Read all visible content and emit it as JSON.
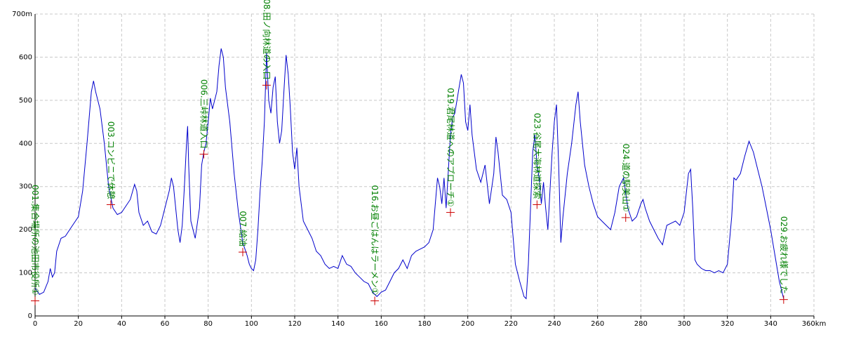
{
  "chart_data": {
    "type": "line",
    "x": [
      0,
      2,
      4,
      6,
      7,
      8,
      9,
      10,
      12,
      14,
      16,
      18,
      20,
      22,
      24,
      26,
      27,
      28,
      30,
      32,
      34,
      36,
      38,
      40,
      42,
      44,
      46,
      47,
      48,
      50,
      52,
      54,
      56,
      58,
      60,
      62,
      63,
      64,
      66,
      67,
      68,
      69,
      70,
      70.5,
      71,
      72,
      74,
      76,
      77,
      78,
      79,
      80,
      81,
      82,
      84,
      85,
      86,
      87,
      88,
      90,
      92,
      94,
      96,
      98,
      99,
      100,
      101,
      102,
      103,
      104,
      105,
      106,
      107,
      108,
      109,
      110,
      111,
      112,
      113,
      114,
      115,
      116,
      117,
      118,
      119,
      120,
      121,
      122,
      124,
      126,
      128,
      130,
      132,
      134,
      136,
      138,
      140,
      142,
      144,
      146,
      148,
      150,
      152,
      154,
      156,
      158,
      160,
      162,
      164,
      166,
      168,
      170,
      172,
      174,
      176,
      178,
      180,
      182,
      184,
      186,
      187,
      188,
      189,
      190,
      192,
      193,
      194,
      196,
      197,
      198,
      199,
      200,
      201,
      202,
      204,
      206,
      208,
      210,
      212,
      213,
      214,
      216,
      218,
      220,
      222,
      224,
      226,
      227,
      228,
      229,
      230,
      231,
      232,
      233,
      234,
      235,
      236,
      237,
      238,
      239,
      240,
      241,
      242,
      243,
      244,
      246,
      248,
      250,
      251,
      252,
      254,
      256,
      258,
      260,
      262,
      264,
      266,
      268,
      270,
      272,
      274,
      276,
      278,
      280,
      281,
      282,
      284,
      286,
      288,
      290,
      292,
      294,
      296,
      298,
      300,
      302,
      303,
      304,
      305,
      306,
      308,
      310,
      312,
      314,
      316,
      318,
      320,
      322,
      323,
      324,
      326,
      328,
      330,
      332,
      334,
      336,
      338,
      340,
      342,
      344,
      346
    ],
    "series": [
      {
        "color": "#0000cc",
        "values": [
          65,
          50,
          55,
          80,
          110,
          90,
          100,
          150,
          180,
          185,
          200,
          215,
          230,
          290,
          400,
          520,
          545,
          520,
          480,
          400,
          300,
          250,
          235,
          240,
          255,
          270,
          305,
          290,
          240,
          210,
          220,
          195,
          190,
          210,
          250,
          290,
          320,
          300,
          200,
          170,
          210,
          300,
          400,
          440,
          350,
          220,
          180,
          250,
          350,
          380,
          400,
          450,
          505,
          480,
          520,
          580,
          620,
          600,
          530,
          450,
          330,
          240,
          170,
          140,
          120,
          110,
          105,
          130,
          200,
          290,
          360,
          450,
          610,
          500,
          470,
          530,
          555,
          450,
          400,
          430,
          520,
          605,
          560,
          480,
          380,
          340,
          390,
          300,
          220,
          200,
          180,
          150,
          140,
          120,
          110,
          115,
          110,
          140,
          120,
          115,
          100,
          90,
          80,
          75,
          55,
          45,
          55,
          60,
          80,
          100,
          110,
          130,
          110,
          140,
          150,
          155,
          160,
          170,
          200,
          320,
          300,
          260,
          320,
          250,
          420,
          460,
          470,
          530,
          560,
          540,
          450,
          430,
          490,
          420,
          340,
          310,
          350,
          260,
          330,
          415,
          380,
          280,
          270,
          240,
          120,
          80,
          45,
          40,
          120,
          250,
          380,
          420,
          350,
          320,
          260,
          310,
          250,
          200,
          290,
          380,
          450,
          490,
          350,
          170,
          230,
          330,
          400,
          490,
          520,
          450,
          350,
          300,
          260,
          230,
          220,
          210,
          200,
          240,
          300,
          320,
          250,
          220,
          230,
          260,
          270,
          250,
          220,
          200,
          180,
          165,
          210,
          215,
          220,
          210,
          240,
          330,
          340,
          250,
          130,
          120,
          110,
          105,
          105,
          100,
          105,
          100,
          120,
          230,
          320,
          315,
          330,
          370,
          405,
          380,
          340,
          300,
          250,
          200,
          140,
          80,
          40
        ]
      }
    ],
    "waypoints": {
      "x": [
        0,
        35,
        78,
        96,
        107,
        157,
        192,
        232,
        273,
        346
      ],
      "y": [
        35,
        258,
        375,
        148,
        535,
        35,
        240,
        258,
        228,
        38
      ],
      "labels": [
        "001.集合場所の池田市役所①",
        "003.コンビニで休憩",
        "006.三峠林道入口",
        "007.給油",
        "008.田ノ向林道の入口",
        "016.お昼ごはんはラーメン①",
        "019.君尾林道へのアプローチ①",
        "023.谷尾大海林道探索",
        "024.道の駅美山①",
        "029.お疲れ様でした"
      ],
      "color": "#cc0000",
      "label_color": "#008000"
    },
    "xlim": [
      0,
      360
    ],
    "ylim": [
      0,
      700
    ],
    "xticks": [
      0,
      20,
      40,
      60,
      80,
      100,
      120,
      140,
      160,
      180,
      200,
      220,
      240,
      260,
      280,
      300,
      320,
      340,
      {
        "value": 360,
        "label": "360km"
      }
    ],
    "yticks": [
      0,
      100,
      200,
      300,
      400,
      500,
      600,
      {
        "value": 700,
        "label": "700m"
      }
    ],
    "grid": true
  }
}
